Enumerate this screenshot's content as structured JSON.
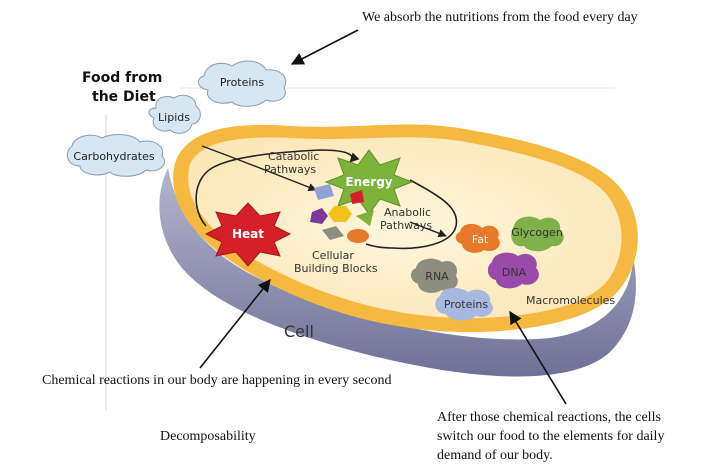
{
  "food_source": {
    "title_line1": "Food from",
    "title_line2": "the Diet",
    "items": [
      "Proteins",
      "Lipids",
      "Carbohydrates"
    ]
  },
  "cell": {
    "label": "Cell",
    "energy": "Energy",
    "heat": "Heat",
    "catabolic": [
      "Catabolic",
      "Pathways"
    ],
    "anabolic": [
      "Anabolic",
      "Pathways"
    ],
    "building_blocks": [
      "Cellular",
      "Building Blocks"
    ],
    "macromolecules_label": "Macromolecules",
    "macromolecules": [
      {
        "name": "Fat",
        "color": "#e8782a"
      },
      {
        "name": "Glycogen",
        "color": "#7fb04a"
      },
      {
        "name": "RNA",
        "color": "#8e8e80"
      },
      {
        "name": "DNA",
        "color": "#9a4aa8"
      },
      {
        "name": "Proteins",
        "color": "#a9b8e0"
      }
    ]
  },
  "annotations": {
    "top": "We absorb the nutritions from the food every day",
    "chemical": "Chemical reactions in our body are happening in every second",
    "decomposability": "Decomposability",
    "after": [
      "After those chemical reactions, the cells",
      "switch our food to the elements  for daily",
      "demand of our body."
    ]
  },
  "colors": {
    "cell_fill": "#fdf0cf",
    "cell_rim": "#f5b942",
    "cell_side": "#8a8cad",
    "energy": "#7bb33b",
    "heat": "#d5202a"
  }
}
